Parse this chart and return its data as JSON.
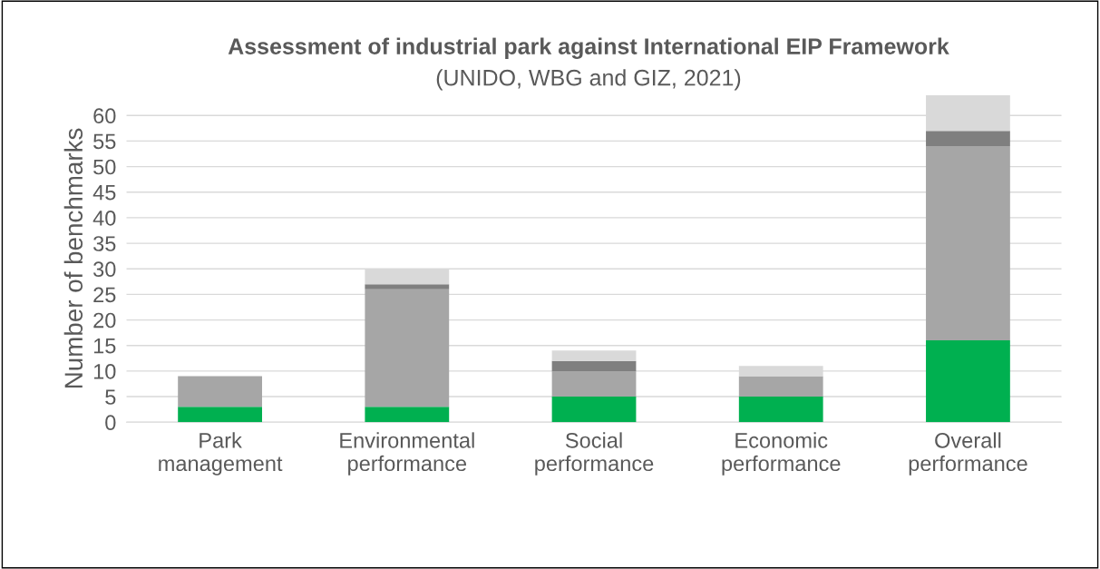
{
  "chart_data": {
    "type": "bar",
    "stacked": true,
    "title": "Assessment of industrial park against International EIP Framework",
    "subtitle": "(UNIDO, WBG and GIZ, 2021)",
    "ylabel": "Number of benchmarks",
    "categories": [
      "Park\nmanagement",
      "Environmental\nperformance",
      "Social\nperformance",
      "Economic\nperformance",
      "Overall\nperformance"
    ],
    "series": [
      {
        "color": "#00b050",
        "values": [
          3,
          3,
          5,
          5,
          16
        ]
      },
      {
        "color": "#a6a6a6",
        "values": [
          6,
          23,
          5,
          4,
          38
        ]
      },
      {
        "color": "#7f7f7f",
        "values": [
          0,
          1,
          2,
          0,
          3
        ]
      },
      {
        "color": "#d9d9d9",
        "values": [
          0,
          3,
          2,
          2,
          7
        ]
      }
    ],
    "ylim": [
      0,
      64
    ],
    "yticks": [
      0,
      5,
      10,
      15,
      20,
      25,
      30,
      35,
      40,
      45,
      50,
      55,
      60
    ],
    "grid": "y",
    "legend": false
  }
}
